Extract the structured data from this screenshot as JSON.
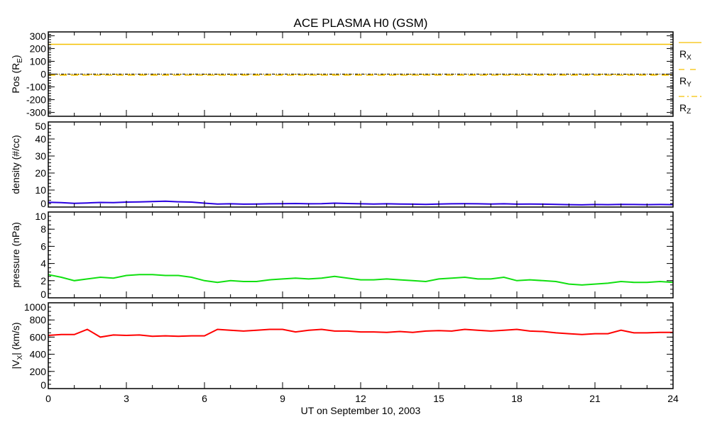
{
  "chart_data": {
    "type": "line",
    "title": "ACE PLASMA H0 (GSM)",
    "xlabel": "UT on September 10, 2003",
    "xlim": [
      0,
      24
    ],
    "xticks": [
      0,
      3,
      6,
      9,
      12,
      15,
      18,
      21,
      24
    ],
    "x": [
      0,
      0.5,
      1,
      1.5,
      2,
      2.5,
      3,
      3.5,
      4,
      4.5,
      5,
      5.5,
      6,
      6.5,
      7,
      7.5,
      8,
      8.5,
      9,
      9.5,
      10,
      10.5,
      11,
      11.5,
      12,
      12.5,
      13,
      13.5,
      14,
      14.5,
      15,
      15.5,
      16,
      16.5,
      17,
      17.5,
      18,
      18.5,
      19,
      19.5,
      20,
      20.5,
      21,
      21.5,
      22,
      22.5,
      23,
      23.5,
      24
    ],
    "panels": [
      {
        "ylabel": "Pos (R",
        "ylabel_sub": "E",
        "ylabel_end": ")",
        "ylim": [
          -330,
          330
        ],
        "yticks": [
          300,
          200,
          100,
          0,
          -100,
          -200,
          -300
        ],
        "minor": 20,
        "legend": [
          {
            "label": "R",
            "sub": "X",
            "style": "solid"
          },
          {
            "label": "R",
            "sub": "Y",
            "style": "dashed"
          },
          {
            "label": "R",
            "sub": "Z",
            "style": "dashdot"
          }
        ],
        "series": [
          {
            "name": "RX",
            "color": "#f5c000",
            "style": "solid",
            "constant": 233
          },
          {
            "name": "RY",
            "color": "#f5c000",
            "style": "dashed",
            "constant": -8
          },
          {
            "name": "RZ",
            "color": "#f5c000",
            "style": "dashdot",
            "constant": -2
          }
        ]
      },
      {
        "ylabel": "density (#/cc)",
        "ylim": [
          0,
          50
        ],
        "yticks": [
          50,
          40,
          30,
          20,
          10,
          0
        ],
        "minor": 2,
        "series": [
          {
            "name": "density",
            "color": "#2a00e0",
            "values": [
              2.8,
              2.6,
              2.2,
              2.4,
              2.7,
              2.6,
              2.9,
              3.0,
              3.2,
              3.4,
              3.1,
              2.9,
              2.3,
              1.8,
              1.9,
              1.7,
              1.8,
              1.9,
              2.0,
              2.1,
              1.9,
              2.0,
              2.3,
              2.1,
              1.9,
              1.8,
              1.9,
              1.8,
              1.7,
              1.6,
              1.8,
              1.9,
              2.0,
              1.9,
              1.8,
              1.9,
              1.7,
              1.8,
              1.7,
              1.6,
              1.4,
              1.3,
              1.5,
              1.4,
              1.6,
              1.5,
              1.4,
              1.5,
              1.4
            ]
          }
        ]
      },
      {
        "ylabel": "pressure (nPa)",
        "ylim": [
          0,
          10
        ],
        "yticks": [
          10,
          8,
          6,
          4,
          2,
          0
        ],
        "minor": 0.5,
        "series": [
          {
            "name": "pressure",
            "color": "#10e010",
            "values": [
              2.7,
              2.4,
              2.0,
              2.2,
              2.4,
              2.3,
              2.6,
              2.7,
              2.7,
              2.6,
              2.6,
              2.4,
              2.0,
              1.8,
              2.0,
              1.9,
              1.9,
              2.1,
              2.2,
              2.3,
              2.2,
              2.3,
              2.5,
              2.3,
              2.1,
              2.1,
              2.2,
              2.1,
              2.0,
              1.9,
              2.2,
              2.3,
              2.4,
              2.2,
              2.2,
              2.4,
              2.0,
              2.1,
              2.0,
              1.9,
              1.6,
              1.5,
              1.6,
              1.7,
              1.9,
              1.8,
              1.8,
              1.9,
              1.8
            ]
          }
        ]
      },
      {
        "ylabel": "|V",
        "ylabel_sub": "X",
        "ylabel_end": "| (km/s)",
        "ylim": [
          0,
          1000
        ],
        "yticks": [
          1000,
          800,
          600,
          400,
          200,
          0
        ],
        "minor": 50,
        "series": [
          {
            "name": "Vx",
            "color": "#ff0000",
            "values": [
              620,
              630,
              630,
              690,
              600,
              625,
              620,
              625,
              610,
              615,
              610,
              615,
              615,
              690,
              680,
              670,
              680,
              690,
              690,
              660,
              680,
              690,
              670,
              670,
              660,
              660,
              655,
              665,
              655,
              670,
              675,
              670,
              690,
              680,
              670,
              680,
              690,
              670,
              665,
              650,
              640,
              630,
              640,
              640,
              680,
              650,
              650,
              655,
              655
            ]
          }
        ]
      }
    ]
  }
}
